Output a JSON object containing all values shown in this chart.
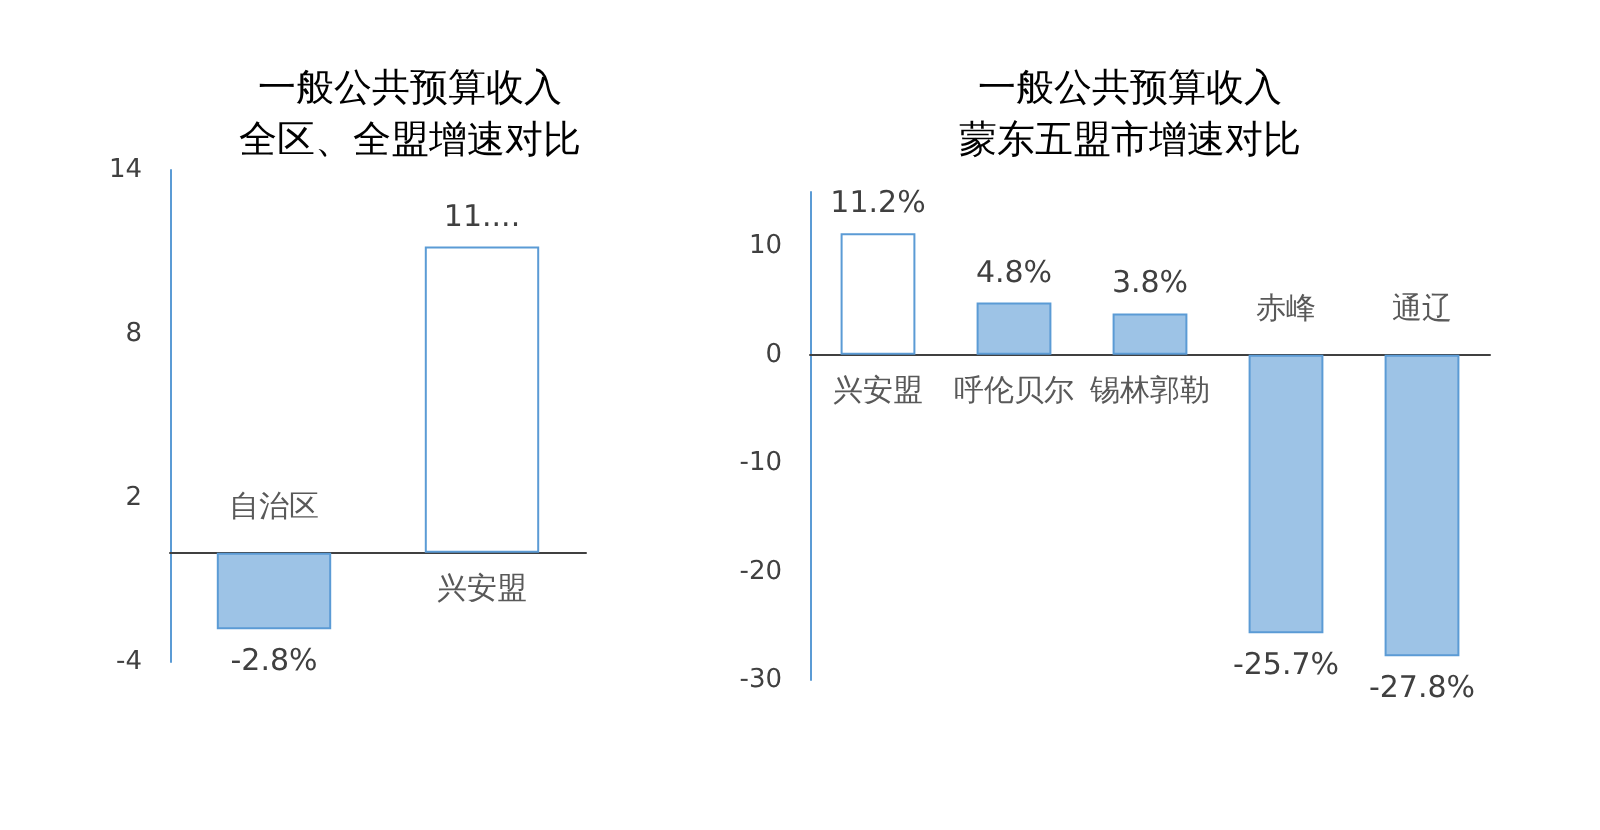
{
  "chart_data": [
    {
      "type": "bar",
      "title": "一般公共预算收入",
      "subtitle": "全区、全盟增速对比",
      "categories": [
        "自治区",
        "兴安盟"
      ],
      "values": [
        -2.8,
        11.2
      ],
      "colors": [
        "#9dc3e6",
        "#ffffff"
      ],
      "value_labels": [
        "-2.8%",
        "11...."
      ],
      "ylim": [
        -4,
        14
      ],
      "yticks": [
        -4,
        2,
        8,
        14
      ],
      "grid": false
    },
    {
      "type": "bar",
      "title": "一般公共预算收入",
      "subtitle": "蒙东五盟市增速对比",
      "categories": [
        "兴安盟",
        "呼伦贝尔",
        "锡林郭勒",
        "赤峰",
        "通辽"
      ],
      "values": [
        11.2,
        4.8,
        3.8,
        -25.7,
        -27.8
      ],
      "colors": [
        "#ffffff",
        "#9dc3e6",
        "#9dc3e6",
        "#9dc3e6",
        "#9dc3e6"
      ],
      "value_labels": [
        "11.2%",
        "4.8%",
        "3.8%",
        "-25.7%",
        "-27.8%"
      ],
      "ylim": [
        -30,
        15
      ],
      "yticks": [
        -30,
        -20,
        -10,
        0,
        10
      ],
      "grid": false
    }
  ]
}
